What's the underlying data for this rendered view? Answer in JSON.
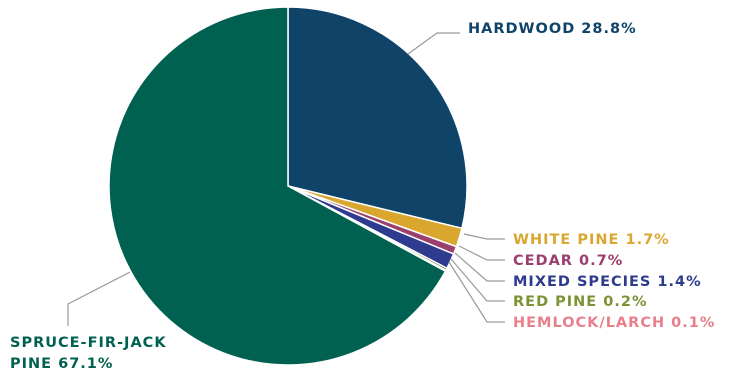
{
  "chart_data": {
    "type": "pie",
    "slices": [
      {
        "label": "HARDWOOD",
        "value": 28.8,
        "value_text": "28.8%",
        "color": "#0f4468",
        "label_color": "#0f4468"
      },
      {
        "label": "WHITE PINE",
        "value": 1.7,
        "value_text": "1.7%",
        "color": "#d9a62e",
        "label_color": "#d9a62e"
      },
      {
        "label": "CEDAR",
        "value": 0.7,
        "value_text": "0.7%",
        "color": "#9b3f6e",
        "label_color": "#9b3f6e"
      },
      {
        "label": "MIXED SPECIES",
        "value": 1.4,
        "value_text": "1.4%",
        "color": "#2e3b8f",
        "label_color": "#2e3b8f"
      },
      {
        "label": "RED PINE",
        "value": 0.2,
        "value_text": "0.2%",
        "color": "#6e8a2f",
        "label_color": "#7d9333"
      },
      {
        "label": "HEMLOCK/LARCH",
        "value": 0.1,
        "value_text": "0.1%",
        "color": "#e8808c",
        "label_color": "#e8808c"
      },
      {
        "label": "SPRUCE-FIR-JACK PINE",
        "value": 67.1,
        "value_text": "67.1%",
        "color": "#006150",
        "label_color": "#006150"
      }
    ]
  }
}
